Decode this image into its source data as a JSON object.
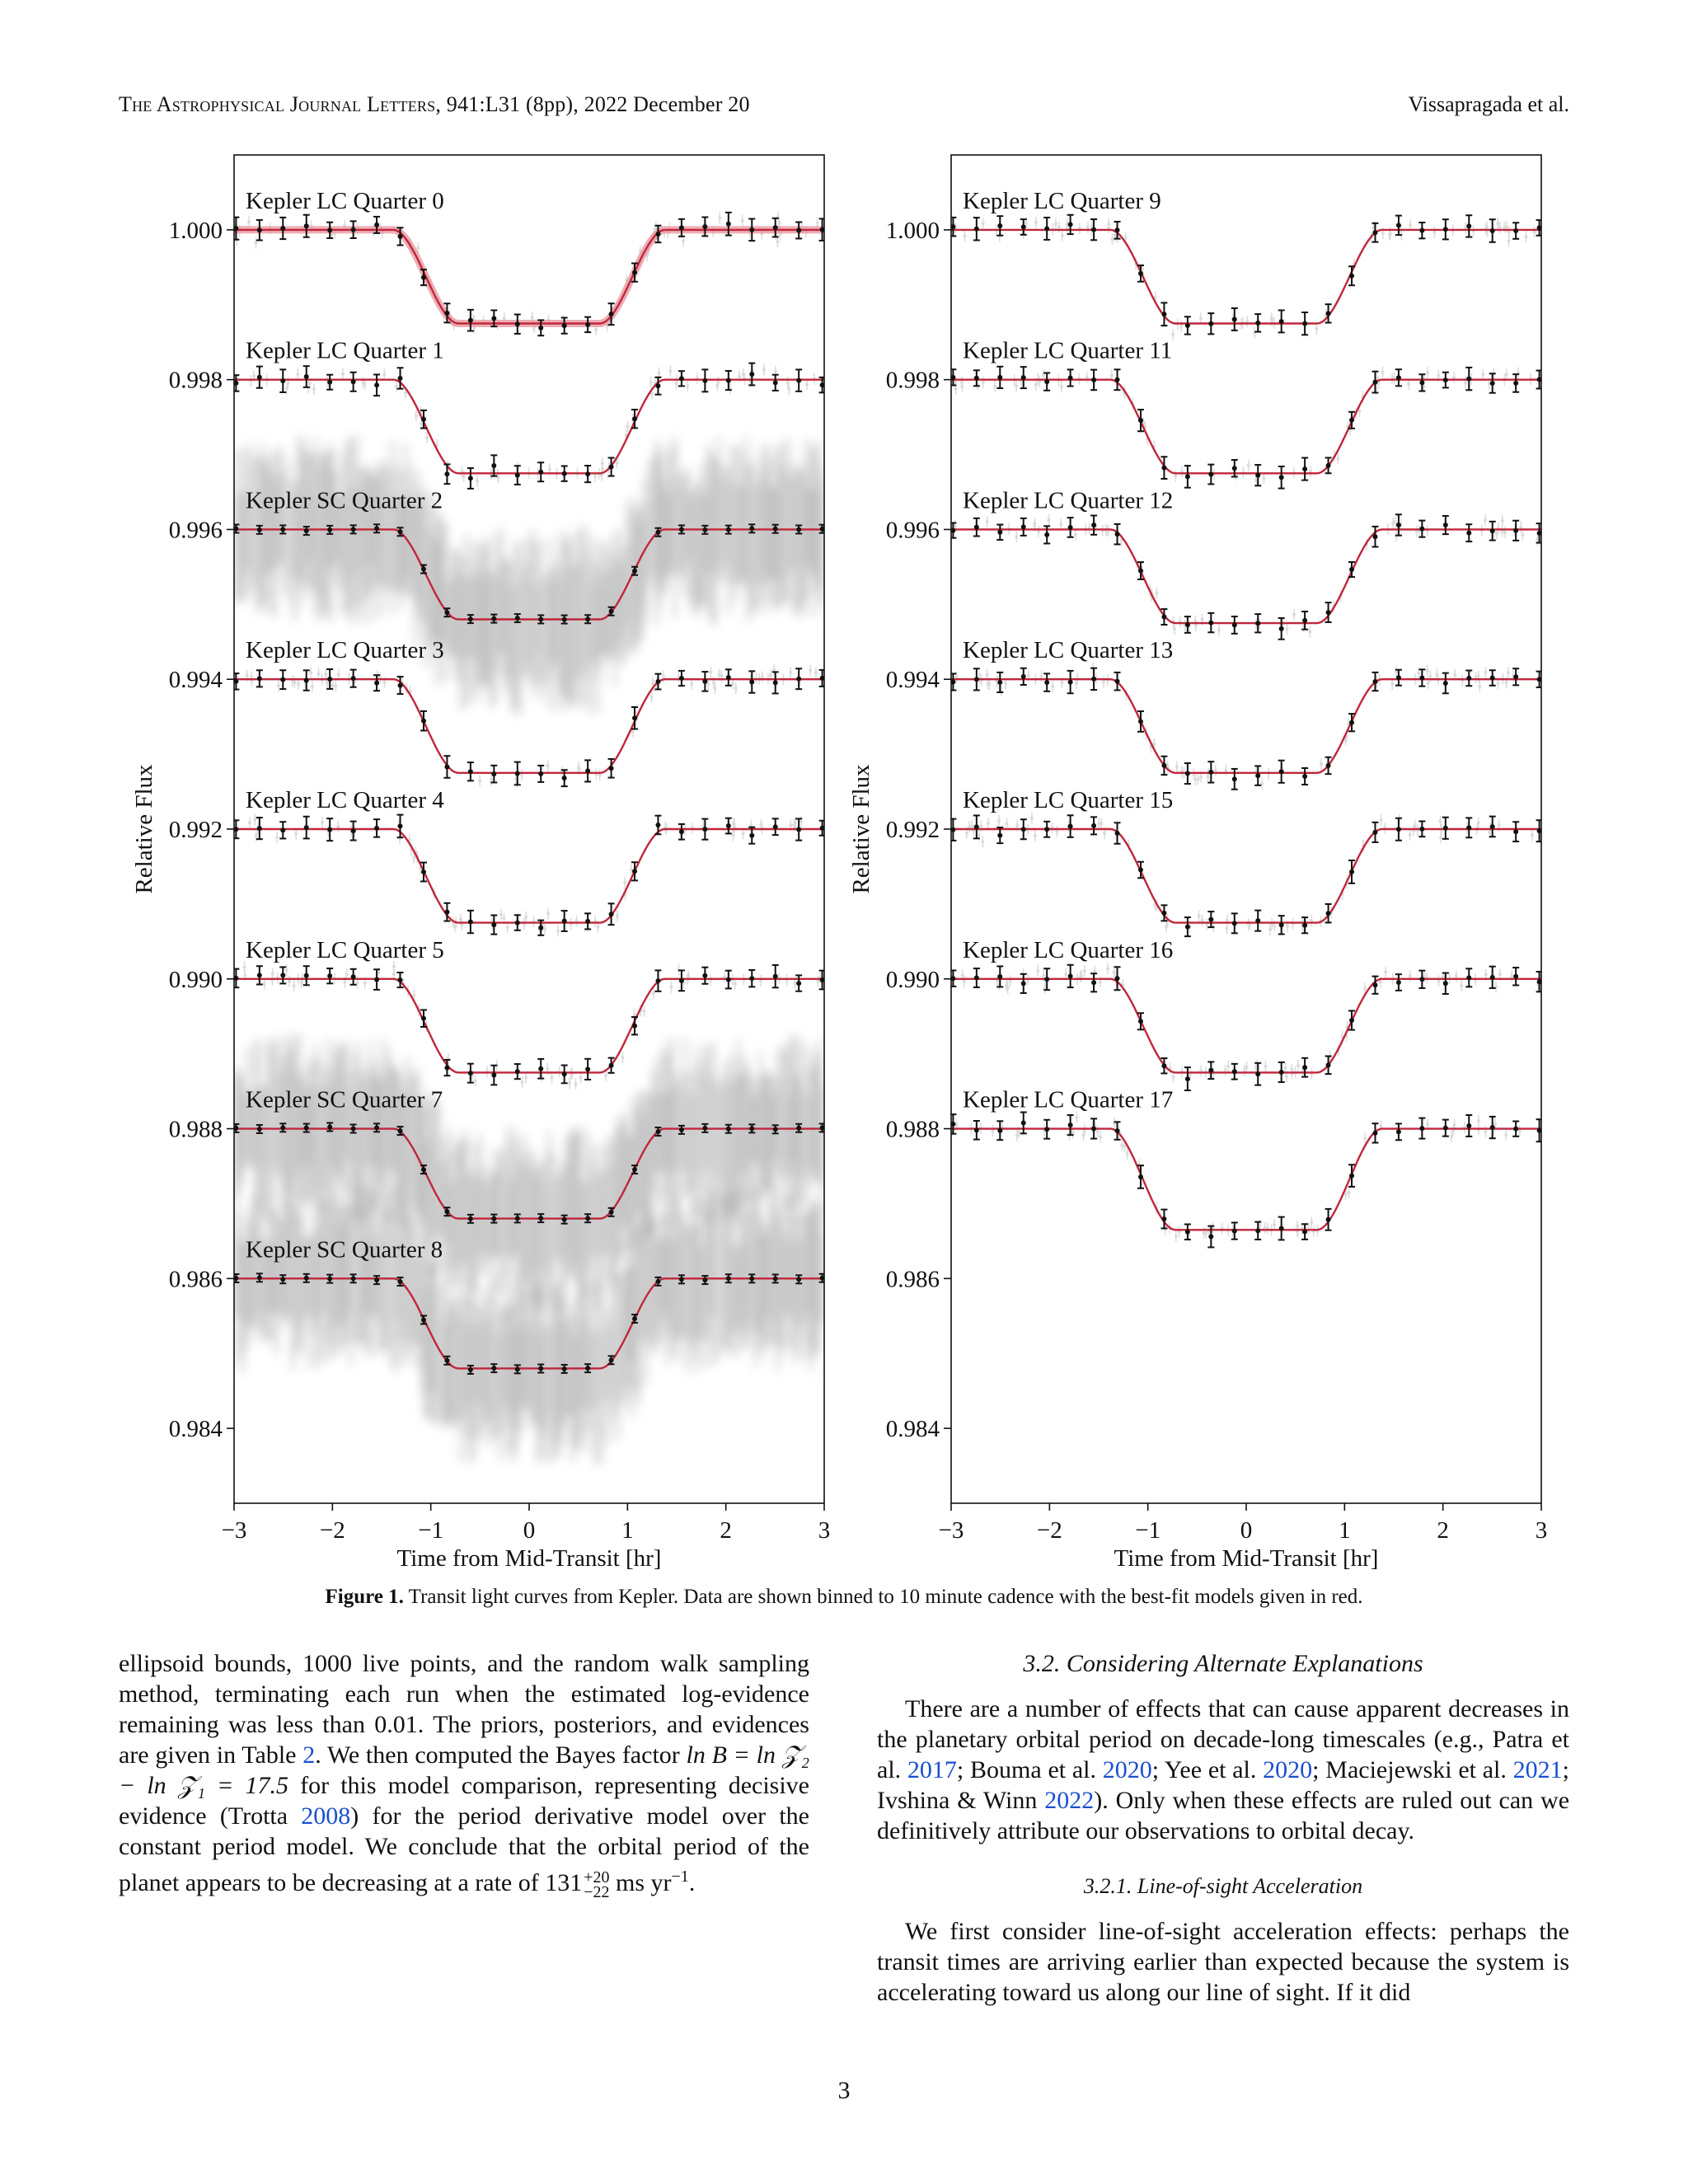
{
  "header": {
    "journal": "The Astrophysical Journal Letters",
    "citation": ", 941:L31 (8pp), 2022 December 20",
    "authors": "Vissapragada et al."
  },
  "figure": {
    "caption_label": "Figure 1.",
    "caption_text": " Transit light curves from Kepler. Data are shown binned to 10 minute cadence with the best-fit models given in red.",
    "colors": {
      "model": "#c0263a",
      "model_band": "#e89aa4",
      "data": "#111111",
      "raw": "#9a9a9a"
    }
  },
  "chart_data": [
    {
      "type": "line",
      "xlabel": "Time from Mid-Transit [hr]",
      "ylabel": "Relative Flux",
      "xlim": [
        -3,
        3
      ],
      "ylim": [
        0.983,
        1.001
      ],
      "xticks": [
        "−3",
        "−2",
        "−1",
        "0",
        "1",
        "2",
        "3"
      ],
      "yticks": [
        "1.000",
        "0.998",
        "0.996",
        "0.994",
        "0.992",
        "0.990",
        "0.988",
        "0.986",
        "0.984"
      ],
      "series": [
        {
          "name": "Kepler LC Quarter 0",
          "baseline": 1.0,
          "depth": 0.00125,
          "cadence": "LC"
        },
        {
          "name": "Kepler LC Quarter 1",
          "baseline": 0.998,
          "depth": 0.00125,
          "cadence": "LC"
        },
        {
          "name": "Kepler SC Quarter 2",
          "baseline": 0.996,
          "depth": 0.0012,
          "cadence": "SC"
        },
        {
          "name": "Kepler LC Quarter 3",
          "baseline": 0.994,
          "depth": 0.00125,
          "cadence": "LC"
        },
        {
          "name": "Kepler LC Quarter 4",
          "baseline": 0.992,
          "depth": 0.00125,
          "cadence": "LC"
        },
        {
          "name": "Kepler LC Quarter 5",
          "baseline": 0.99,
          "depth": 0.00125,
          "cadence": "LC"
        },
        {
          "name": "Kepler SC Quarter 7",
          "baseline": 0.988,
          "depth": 0.0012,
          "cadence": "SC"
        },
        {
          "name": "Kepler SC Quarter 8",
          "baseline": 0.986,
          "depth": 0.0012,
          "cadence": "SC"
        }
      ]
    },
    {
      "type": "line",
      "xlabel": "Time from Mid-Transit [hr]",
      "ylabel": "Relative Flux",
      "xlim": [
        -3,
        3
      ],
      "ylim": [
        0.983,
        1.001
      ],
      "xticks": [
        "−3",
        "−2",
        "−1",
        "0",
        "1",
        "2",
        "3"
      ],
      "yticks": [
        "1.000",
        "0.998",
        "0.996",
        "0.994",
        "0.992",
        "0.990",
        "0.988",
        "0.986",
        "0.984"
      ],
      "series": [
        {
          "name": "Kepler LC Quarter 9",
          "baseline": 1.0,
          "depth": 0.00125,
          "cadence": "LC"
        },
        {
          "name": "Kepler LC Quarter 11",
          "baseline": 0.998,
          "depth": 0.00125,
          "cadence": "LC"
        },
        {
          "name": "Kepler LC Quarter 12",
          "baseline": 0.996,
          "depth": 0.00125,
          "cadence": "LC"
        },
        {
          "name": "Kepler LC Quarter 13",
          "baseline": 0.994,
          "depth": 0.00125,
          "cadence": "LC"
        },
        {
          "name": "Kepler LC Quarter 15",
          "baseline": 0.992,
          "depth": 0.00125,
          "cadence": "LC"
        },
        {
          "name": "Kepler LC Quarter 16",
          "baseline": 0.99,
          "depth": 0.00125,
          "cadence": "LC"
        },
        {
          "name": "Kepler LC Quarter 17",
          "baseline": 0.988,
          "depth": 0.00135,
          "cadence": "LC"
        }
      ]
    }
  ],
  "body": {
    "left": {
      "p1_a": "ellipsoid bounds, 1000 live points, and the random walk sampling method, terminating each run when the estimated log-evidence remaining was less than 0.01. The priors, posteriors, and evidences are given in Table ",
      "p1_ref_table": "2",
      "p1_b": ". We then computed the Bayes factor ",
      "p1_math": "ln B = ln 𝒵₂ − ln 𝒵₁ = 17.5",
      "p1_c": " for this model comparison, representing decisive evidence (Trotta ",
      "p1_ref_trotta": "2008",
      "p1_d": ") for the period derivative model over the constant period model. We conclude that the orbital period of the planet appears to be decreasing at a rate of ",
      "p1_rate": "131",
      "p1_rate_sup": "+20",
      "p1_rate_sub": "−22",
      "p1_unit": " ms yr",
      "p1_unit_sup": "−1",
      "p1_end": "."
    },
    "right": {
      "section_title": "3.2. Considering Alternate Explanations",
      "p2_a": "There are a number of effects that can cause apparent decreases in the planetary orbital period on decade-long timescales (e.g., Patra et al. ",
      "p2_ref1": "2017",
      "p2_b": "; Bouma et al. ",
      "p2_ref2": "2020",
      "p2_c": "; Yee et al. ",
      "p2_ref3": "2020",
      "p2_d": "; Maciejewski et al. ",
      "p2_ref4": "2021",
      "p2_e": "; Ivshina & Winn ",
      "p2_ref5": "2022",
      "p2_f": "). Only when these effects are ruled out can we definitively attribute our observations to orbital decay.",
      "subsection_title": "3.2.1. Line-of-sight Acceleration",
      "p3": "We first consider line-of-sight acceleration effects: perhaps the transit times are arriving earlier than expected because the system is accelerating toward us along our line of sight. If it did"
    }
  },
  "page_number": "3"
}
